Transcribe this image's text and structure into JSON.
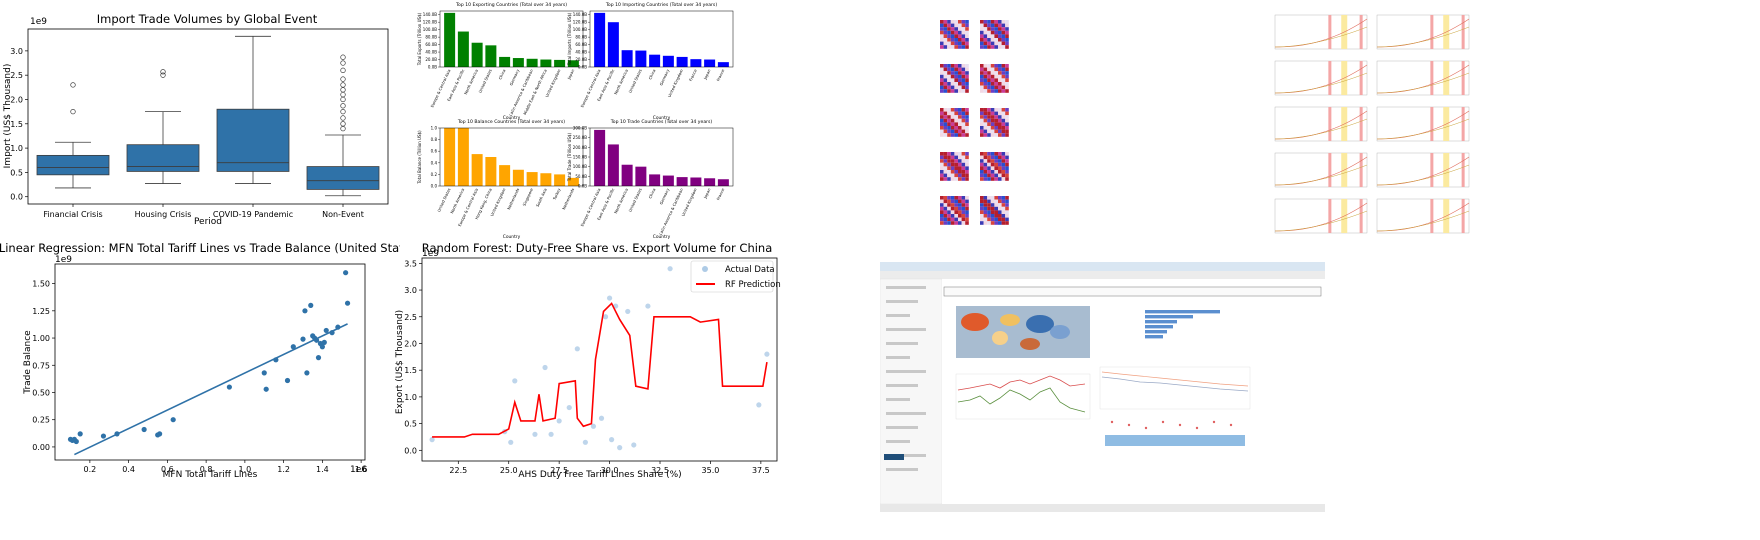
{
  "chart_data": [
    {
      "type": "box",
      "title": "Import Trade Volumes by Global Event",
      "xlabel": "Period",
      "ylabel": "Import (US$ Thousand)",
      "y_exponent": "1e9",
      "ylim": [
        -0.15,
        3.45
      ],
      "yticks": [
        0.0,
        0.5,
        1.0,
        1.5,
        2.0,
        2.5,
        3.0
      ],
      "ytick_labels": [
        "0.0",
        "0.5",
        "1.0",
        "1.5",
        "2.0",
        "2.5",
        "3.0"
      ],
      "color": "#2f72a8",
      "categories": [
        "Financial Crisis",
        "Housing Crisis",
        "COVID-19 Pandemic",
        "Non-Event"
      ],
      "boxes": [
        {
          "whisker_low": 0.18,
          "q1": 0.45,
          "median": 0.6,
          "q3": 0.85,
          "whisker_high": 1.12,
          "outliers": [
            1.75,
            2.3
          ]
        },
        {
          "whisker_low": 0.27,
          "q1": 0.52,
          "median": 0.62,
          "q3": 1.07,
          "whisker_high": 1.75,
          "outliers": [
            2.5,
            2.57
          ]
        },
        {
          "whisker_low": 0.27,
          "q1": 0.52,
          "median": 0.7,
          "q3": 1.8,
          "whisker_high": 3.3,
          "outliers": []
        },
        {
          "whisker_low": 0.02,
          "q1": 0.15,
          "median": 0.33,
          "q3": 0.62,
          "whisker_high": 1.27,
          "outliers": [
            1.4,
            1.5,
            1.62,
            1.75,
            1.87,
            2.0,
            2.1,
            2.2,
            2.3,
            2.42,
            2.6,
            2.75,
            2.87
          ]
        }
      ]
    },
    {
      "type": "bar",
      "title": "Top 10 Exporting Countries (Total over 34 years)",
      "xlabel": "Country",
      "ylabel": "Total Exports (Trillion US$)",
      "color": "#008000",
      "ylim": [
        0,
        150
      ],
      "yticks": [
        0,
        20,
        40,
        60,
        80,
        100,
        120,
        140
      ],
      "ytick_labels": [
        "0.0B",
        "20.0B",
        "40.0B",
        "60.0B",
        "80.0B",
        "100.0B",
        "120.0B",
        "140.0B"
      ],
      "categories": [
        "Europe & Central Asia",
        "East Asia & Pacific",
        "North America",
        "United States",
        "China",
        "Germany",
        "Latin America & Caribbean",
        "Middle East & North Africa",
        "United Kingdom",
        "Japan"
      ],
      "values": [
        145,
        95,
        65,
        58,
        27,
        24,
        22,
        20,
        19,
        18
      ]
    },
    {
      "type": "bar",
      "title": "Top 10 Importing Countries (Total over 34 years)",
      "xlabel": "Country",
      "ylabel": "Total Imports (Trillion US$)",
      "color": "#0000ff",
      "ylim": [
        0,
        150
      ],
      "yticks": [
        0,
        20,
        40,
        60,
        80,
        100,
        120,
        140
      ],
      "ytick_labels": [
        "0.0B",
        "20.0B",
        "40.0B",
        "60.0B",
        "80.0B",
        "100.0B",
        "120.0B",
        "140.0B"
      ],
      "categories": [
        "Europe & Central Asia",
        "East Asia & Pacific",
        "North America",
        "United States",
        "China",
        "Germany",
        "United Kingdom",
        "France",
        "Japan",
        "France"
      ],
      "values": [
        145,
        120,
        45,
        44,
        33,
        30,
        27,
        21,
        20,
        13
      ]
    },
    {
      "type": "bar",
      "title": "Top 10 Balance Countries (Total over 34 years)",
      "xlabel": "Country",
      "ylabel": "Total Balance (Trillion US$)",
      "color": "#ffa500",
      "ylim": [
        0,
        1
      ],
      "yticks": [
        0,
        0.2,
        0.4,
        0.6,
        0.8,
        1.0
      ],
      "ytick_labels": [
        "0.0",
        "0.2",
        "0.4",
        "0.6",
        "0.8",
        "1.0"
      ],
      "categories": [
        "United States",
        "North America",
        "Europe & Central Asia",
        "Hong Kong, China",
        "United Kingdom",
        "Netherlands",
        "Singapore",
        "South Asia",
        "Turkey",
        "Netherlands"
      ],
      "values": [
        1.0,
        1.0,
        0.55,
        0.5,
        0.36,
        0.28,
        0.24,
        0.22,
        0.2,
        0.14
      ]
    },
    {
      "type": "bar",
      "title": "Top 10 Trade Countries (Total over 34 years)",
      "xlabel": "Country",
      "ylabel": "Total Trade (Trillion US$)",
      "color": "#800080",
      "ylim": [
        0,
        300
      ],
      "yticks": [
        0,
        50,
        100,
        150,
        200,
        250,
        300
      ],
      "ytick_labels": [
        "0.0B",
        "50.0B",
        "100.0B",
        "150.0B",
        "200.0B",
        "250.0B",
        "300.0B"
      ],
      "categories": [
        "Europe & Central Asia",
        "East Asia & Pacific",
        "North America",
        "United States",
        "China",
        "Germany",
        "Latin America & Caribbean",
        "United Kingdom",
        "Japan",
        "France"
      ],
      "values": [
        290,
        215,
        110,
        100,
        60,
        54,
        46,
        44,
        40,
        35
      ]
    },
    {
      "type": "scatter",
      "title": "Linear Regression: MFN Total Tariff Lines vs Trade Balance (United States)",
      "xlabel": "MFN Total Tariff Lines",
      "ylabel": "Trade Balance",
      "x_exponent": "1e6",
      "y_exponent": "1e9",
      "xlim": [
        0.02,
        1.62
      ],
      "ylim": [
        -0.12,
        1.68
      ],
      "xticks": [
        0.2,
        0.4,
        0.6,
        0.8,
        1.0,
        1.2,
        1.4,
        1.6
      ],
      "xtick_labels": [
        "0.2",
        "0.4",
        "0.6",
        "0.8",
        "1.0",
        "1.2",
        "1.4",
        "1.6"
      ],
      "yticks": [
        0.0,
        0.25,
        0.5,
        0.75,
        1.0,
        1.25,
        1.5
      ],
      "ytick_labels": [
        "0.00",
        "0.25",
        "0.50",
        "0.75",
        "1.00",
        "1.25",
        "1.50"
      ],
      "color": "#2f72a8",
      "points": [
        [
          0.1,
          0.07
        ],
        [
          0.11,
          0.06
        ],
        [
          0.12,
          0.07
        ],
        [
          0.13,
          0.05
        ],
        [
          0.15,
          0.12
        ],
        [
          0.27,
          0.1
        ],
        [
          0.34,
          0.12
        ],
        [
          0.48,
          0.16
        ],
        [
          0.55,
          0.11
        ],
        [
          0.56,
          0.12
        ],
        [
          0.63,
          0.25
        ],
        [
          0.92,
          0.55
        ],
        [
          1.1,
          0.68
        ],
        [
          1.11,
          0.53
        ],
        [
          1.16,
          0.8
        ],
        [
          1.22,
          0.61
        ],
        [
          1.25,
          0.92
        ],
        [
          1.3,
          0.99
        ],
        [
          1.31,
          1.25
        ],
        [
          1.32,
          0.68
        ],
        [
          1.34,
          1.3
        ],
        [
          1.35,
          1.02
        ],
        [
          1.37,
          0.98
        ],
        [
          1.38,
          0.82
        ],
        [
          1.39,
          0.95
        ],
        [
          1.4,
          0.92
        ],
        [
          1.42,
          1.07
        ],
        [
          1.45,
          1.05
        ],
        [
          1.48,
          1.1
        ],
        [
          1.52,
          1.6
        ],
        [
          1.53,
          1.32
        ],
        [
          1.41,
          0.96
        ],
        [
          1.36,
          1.0
        ]
      ],
      "fit_line": [
        [
          0.12,
          -0.07
        ],
        [
          1.53,
          1.13
        ]
      ]
    },
    {
      "type": "line",
      "title": "Random Forest: Duty-Free Share vs. Export Volume for China",
      "xlabel": "AHS Duty Free Tariff Lines Share (%)",
      "ylabel": "Export (US$ Thousand)",
      "y_exponent": "1e9",
      "xlim": [
        20.7,
        38.3
      ],
      "ylim": [
        -0.2,
        3.6
      ],
      "xticks": [
        22.5,
        25.0,
        27.5,
        30.0,
        32.5,
        35.0,
        37.5
      ],
      "xtick_labels": [
        "22.5",
        "25.0",
        "27.5",
        "30.0",
        "32.5",
        "35.0",
        "37.5"
      ],
      "yticks": [
        0.0,
        0.5,
        1.0,
        1.5,
        2.0,
        2.5,
        3.0,
        3.5
      ],
      "ytick_labels": [
        "0.0",
        "0.5",
        "1.0",
        "1.5",
        "2.0",
        "2.5",
        "3.0",
        "3.5"
      ],
      "series": [
        {
          "name": "Actual Data",
          "kind": "scatter",
          "color": "#aecbe6",
          "points": [
            [
              21.2,
              0.2
            ],
            [
              24.8,
              0.35
            ],
            [
              25.1,
              0.15
            ],
            [
              25.3,
              1.3
            ],
            [
              26.3,
              0.3
            ],
            [
              26.8,
              1.55
            ],
            [
              27.1,
              0.3
            ],
            [
              27.5,
              0.55
            ],
            [
              28.0,
              0.8
            ],
            [
              28.4,
              1.9
            ],
            [
              28.8,
              0.15
            ],
            [
              29.2,
              0.45
            ],
            [
              29.6,
              0.6
            ],
            [
              29.8,
              2.5
            ],
            [
              30.0,
              2.85
            ],
            [
              30.1,
              0.2
            ],
            [
              30.3,
              2.7
            ],
            [
              30.5,
              0.05
            ],
            [
              30.9,
              2.6
            ],
            [
              31.2,
              0.1
            ],
            [
              31.9,
              2.7
            ],
            [
              33.0,
              3.4
            ],
            [
              37.4,
              0.85
            ],
            [
              37.8,
              1.8
            ]
          ]
        },
        {
          "name": "RF Prediction",
          "kind": "line",
          "color": "#ff0000",
          "points": [
            [
              21.2,
              0.25
            ],
            [
              22.8,
              0.25
            ],
            [
              23.2,
              0.3
            ],
            [
              24.5,
              0.3
            ],
            [
              25.0,
              0.4
            ],
            [
              25.3,
              0.9
            ],
            [
              25.6,
              0.55
            ],
            [
              26.3,
              0.55
            ],
            [
              26.5,
              1.05
            ],
            [
              26.7,
              0.55
            ],
            [
              27.3,
              0.6
            ],
            [
              27.5,
              1.25
            ],
            [
              28.3,
              1.3
            ],
            [
              28.4,
              0.6
            ],
            [
              28.7,
              0.45
            ],
            [
              29.1,
              0.5
            ],
            [
              29.3,
              1.7
            ],
            [
              29.7,
              2.6
            ],
            [
              30.1,
              2.75
            ],
            [
              30.5,
              2.45
            ],
            [
              31.0,
              2.15
            ],
            [
              31.3,
              1.2
            ],
            [
              31.9,
              1.15
            ],
            [
              32.2,
              2.5
            ],
            [
              34.0,
              2.5
            ],
            [
              34.5,
              2.4
            ],
            [
              35.4,
              2.45
            ],
            [
              35.6,
              1.2
            ],
            [
              37.6,
              1.2
            ],
            [
              37.8,
              1.65
            ]
          ]
        }
      ]
    }
  ]
}
